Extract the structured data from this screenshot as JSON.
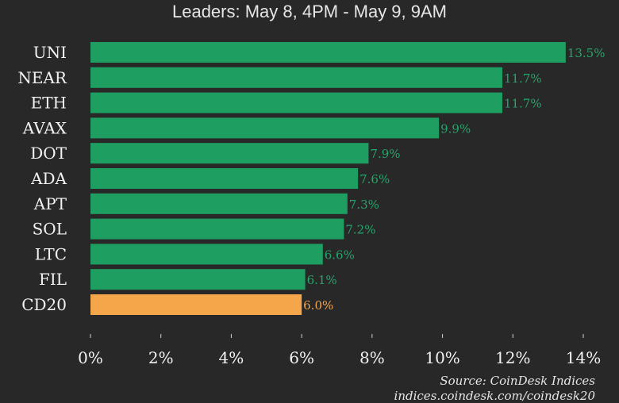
{
  "chart_data": {
    "type": "bar",
    "orientation": "horizontal",
    "title": "Leaders: May 8, 4PM - May 9, 9AM",
    "categories": [
      "UNI",
      "NEAR",
      "ETH",
      "AVAX",
      "DOT",
      "ADA",
      "APT",
      "SOL",
      "LTC",
      "FIL",
      "CD20"
    ],
    "values": [
      13.5,
      11.7,
      11.7,
      9.9,
      7.9,
      7.6,
      7.3,
      7.2,
      6.6,
      6.1,
      6.0
    ],
    "value_labels": [
      "13.5%",
      "11.7%",
      "11.7%",
      "9.9%",
      "7.9%",
      "7.6%",
      "7.3%",
      "7.2%",
      "6.6%",
      "6.1%",
      "6.0%"
    ],
    "highlight_category": "CD20",
    "colors": {
      "bar": "#1f9e62",
      "highlight": "#f5a54a",
      "label": "#25a56a",
      "highlight_label": "#f5a54a"
    },
    "xlim": [
      0,
      14
    ],
    "xticks": [
      0,
      2,
      4,
      6,
      8,
      10,
      12,
      14
    ],
    "xtick_labels": [
      "0%",
      "2%",
      "4%",
      "6%",
      "8%",
      "10%",
      "12%",
      "14%"
    ],
    "xlabel": "",
    "ylabel": "",
    "grid": false,
    "legend": "none"
  },
  "source": {
    "line": "Source: CoinDesk Indices",
    "url": "indices.coindesk.com/coindesk20"
  }
}
